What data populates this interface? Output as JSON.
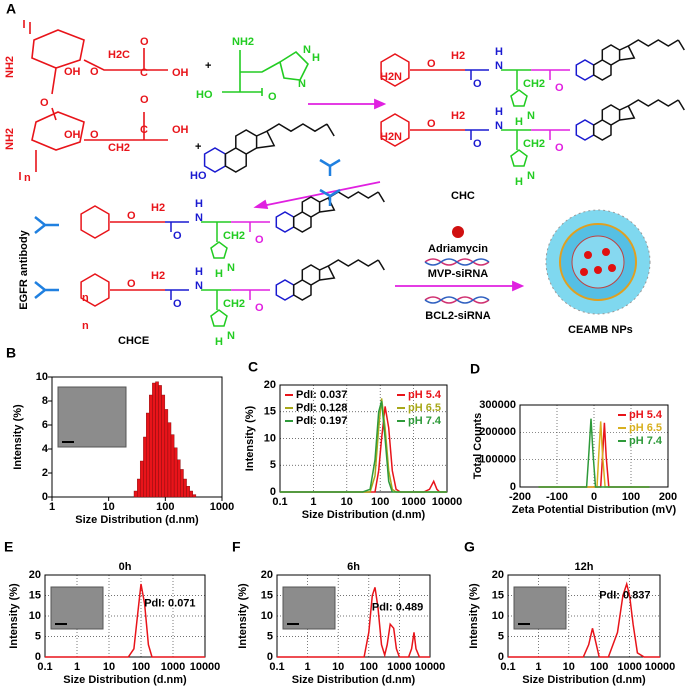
{
  "scheme": {
    "panel": "A",
    "chitosan_labels": [
      "NH2",
      "OH",
      "O",
      "H2C",
      "C",
      "O",
      "OH",
      "NH2",
      "OH",
      "O",
      "CH2",
      "C",
      "O",
      "OH",
      "O",
      "n"
    ],
    "plus": [
      "+",
      "+"
    ],
    "histidine_labels": [
      "NH2",
      "HO",
      "O",
      "N",
      "H",
      "N"
    ],
    "cholesterol_labels": [
      "HO"
    ],
    "products": [
      "CHC",
      "CHCE",
      "CEAMB NPs"
    ],
    "side_label": "EGFR  antibody",
    "reagents": [
      "Adriamycin",
      "MVP-siRNA",
      "BCL2-siRNA"
    ],
    "units": [
      {
        "labels": [
          "O",
          "H2",
          "O",
          "H",
          "N",
          "CH2",
          "N",
          "H",
          "O"
        ]
      },
      {
        "labels": [
          "O",
          "H2",
          "O",
          "H",
          "N",
          "CH2",
          "N",
          "H",
          "O"
        ]
      },
      {
        "labels": [
          "O",
          "H2",
          "O",
          "H",
          "N",
          "CH2",
          "N",
          "H",
          "O"
        ]
      },
      {
        "labels": [
          "O",
          "H2",
          "O",
          "H",
          "N",
          "CH2",
          "N",
          "H",
          "O"
        ]
      }
    ],
    "amine_labels": [
      "H2N",
      "H2N",
      "n",
      "n"
    ]
  },
  "chart_data": [
    {
      "type": "histogram",
      "panel": "B",
      "xlabel": "Size Distribution  (d.nm)",
      "ylabel": "Intensity (%)",
      "xlog": true,
      "xlim": [
        1,
        1000
      ],
      "xticks": [
        1,
        10,
        100,
        1000
      ],
      "ylim": [
        0,
        10
      ],
      "yticks": [
        0,
        2,
        4,
        6,
        8,
        10
      ],
      "grid": false,
      "color": "#e8141a",
      "bins": [
        28,
        32,
        36,
        41,
        46,
        52,
        59,
        67,
        76,
        86,
        98,
        111,
        126,
        143,
        162,
        184,
        209,
        237,
        269,
        305,
        346
      ],
      "values": [
        0.5,
        1.5,
        3,
        5,
        7,
        8.5,
        9.5,
        9.6,
        9.3,
        8.5,
        7.3,
        6.2,
        5.2,
        4.1,
        3.1,
        2.3,
        1.5,
        0.9,
        0.5,
        0.2
      ]
    },
    {
      "type": "line",
      "panel": "C",
      "xlabel": "Size Distribution (d.nm)",
      "ylabel": "Intensity (%)",
      "xlog": true,
      "xlim": [
        0.1,
        10000
      ],
      "xticks": [
        0.1,
        1,
        10,
        100,
        1000,
        10000
      ],
      "ylim": [
        0,
        20
      ],
      "yticks": [
        0,
        5,
        10,
        15,
        20
      ],
      "grid": true,
      "legend": "upper right",
      "annotations": [
        {
          "text": "PdI: 0.037",
          "color": "#e8141a"
        },
        {
          "text": "PdI: 0.128",
          "color": "#a8a81a"
        },
        {
          "text": "PdI: 0.197",
          "color": "#2e9a3a"
        }
      ],
      "series": [
        {
          "name": "pH 5.4",
          "color": "#e8141a",
          "x": [
            0.1,
            30,
            50,
            70,
            90,
            110,
            140,
            180,
            230,
            300,
            400,
            2000,
            3000,
            4000,
            5000,
            6000,
            10000
          ],
          "values": [
            0,
            0,
            0,
            0,
            4,
            10,
            16,
            12,
            4,
            0.5,
            0,
            0,
            0.5,
            2,
            0.5,
            0,
            0
          ]
        },
        {
          "name": "pH 6.5",
          "color": "#a8a81a",
          "x": [
            0.1,
            30,
            50,
            70,
            90,
            110,
            140,
            180,
            230,
            300,
            10000
          ],
          "values": [
            0,
            0,
            0,
            3,
            12,
            17.5,
            12,
            4,
            0.5,
            0,
            0
          ]
        },
        {
          "name": "pH 7.4",
          "color": "#2e9a3a",
          "x": [
            0.1,
            30,
            50,
            70,
            90,
            110,
            140,
            180,
            230,
            10000
          ],
          "values": [
            0,
            0,
            0.5,
            6,
            15,
            17,
            10,
            2,
            0,
            0
          ]
        }
      ]
    },
    {
      "type": "line",
      "panel": "D",
      "xlabel": "Zeta Potential Distribution (mV)",
      "ylabel": "Total Counts",
      "xlog": false,
      "xlim": [
        -200,
        200
      ],
      "xticks": [
        -200,
        -100,
        0,
        100,
        200
      ],
      "ylim": [
        0,
        300000
      ],
      "yticks": [
        0,
        100000,
        200000,
        300000
      ],
      "grid": true,
      "legend": "upper right",
      "series": [
        {
          "name": "pH 5.4",
          "color": "#e8141a",
          "x": [
            -150,
            18,
            23,
            28,
            33,
            40,
            150
          ],
          "values": [
            0,
            0,
            110000,
            235000,
            110000,
            0,
            0
          ]
        },
        {
          "name": "pH 6.5",
          "color": "#d8b020",
          "x": [
            -150,
            8,
            13,
            18,
            23,
            30,
            150
          ],
          "values": [
            0,
            0,
            120000,
            240000,
            120000,
            0,
            0
          ]
        },
        {
          "name": "pH 7.4",
          "color": "#2e9a3a",
          "x": [
            -150,
            -20,
            -14,
            -8,
            -3,
            4,
            150
          ],
          "values": [
            0,
            0,
            120000,
            250000,
            130000,
            0,
            0
          ]
        }
      ]
    },
    {
      "type": "line",
      "panel": "E",
      "title": "0h",
      "xlabel": "Size Distribution (d.nm)",
      "ylabel": "Intensity (%)",
      "xlog": true,
      "xlim": [
        0.1,
        10000
      ],
      "xticks": [
        0.1,
        1,
        10,
        100,
        1000,
        10000
      ],
      "ylim": [
        0,
        20
      ],
      "yticks": [
        0,
        5,
        10,
        15,
        20
      ],
      "grid": true,
      "annotations": [
        {
          "text": "PdI: 0.071",
          "color": "#000000"
        }
      ],
      "series": [
        {
          "color": "#e8141a",
          "x": [
            0.1,
            40,
            60,
            80,
            100,
            130,
            170,
            220,
            10000
          ],
          "values": [
            0,
            0,
            2,
            11,
            17.8,
            13,
            3,
            0,
            0
          ]
        }
      ]
    },
    {
      "type": "line",
      "panel": "F",
      "title": "6h",
      "xlabel": "Size Distribution (d.nm)",
      "ylabel": "Intensity (%)",
      "xlog": true,
      "xlim": [
        0.1,
        10000
      ],
      "xticks": [
        0.1,
        1,
        10,
        100,
        1000,
        10000
      ],
      "ylim": [
        0,
        20
      ],
      "yticks": [
        0,
        5,
        10,
        15,
        20
      ],
      "grid": true,
      "annotations": [
        {
          "text": "PdI: 0.489",
          "color": "#000000"
        }
      ],
      "series": [
        {
          "color": "#e8141a",
          "x": [
            0.1,
            70,
            100,
            130,
            160,
            200,
            260,
            330,
            400,
            500,
            650,
            800,
            1000,
            2000,
            2500,
            3000,
            3500,
            4500,
            10000
          ],
          "values": [
            0,
            0,
            6,
            15,
            17,
            12,
            3,
            0.5,
            3,
            8,
            7,
            2,
            0,
            0,
            2,
            6,
            2,
            0,
            0
          ]
        }
      ]
    },
    {
      "type": "line",
      "panel": "G",
      "title": "12h",
      "xlabel": "Size Distribution (d.nm)",
      "ylabel": "Intensity (%)",
      "xlog": true,
      "xlim": [
        0.1,
        10000
      ],
      "xticks": [
        0.1,
        1,
        10,
        100,
        1000,
        10000
      ],
      "ylim": [
        0,
        20
      ],
      "yticks": [
        0,
        5,
        10,
        15,
        20
      ],
      "grid": true,
      "annotations": [
        {
          "text": "PdI: 0.837",
          "color": "#000000"
        }
      ],
      "series": [
        {
          "color": "#e8141a",
          "x": [
            0.1,
            30,
            45,
            60,
            75,
            100,
            200,
            400,
            600,
            800,
            1000,
            1300,
            1800,
            3000,
            10000
          ],
          "values": [
            0,
            0,
            3,
            7,
            4,
            0,
            0,
            6,
            15,
            17.8,
            15,
            8,
            1,
            0,
            0
          ]
        }
      ]
    }
  ]
}
